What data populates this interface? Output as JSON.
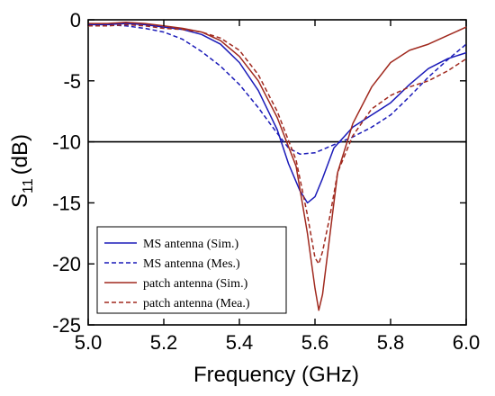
{
  "chart_data": {
    "type": "line",
    "xlabel": "Frequency (GHz)",
    "ylabel_main": "S",
    "ylabel_sub": "11",
    "ylabel_rest": "(dB)",
    "xlim": [
      5.0,
      6.0
    ],
    "ylim": [
      -25,
      0
    ],
    "xticks": [
      "5.0",
      "5.2",
      "5.4",
      "5.6",
      "5.8",
      "6.0"
    ],
    "xtick_values": [
      5.0,
      5.2,
      5.4,
      5.6,
      5.8,
      6.0
    ],
    "yticks": [
      "0",
      "-5",
      "-10",
      "-15",
      "-20",
      "-25"
    ],
    "ytick_values": [
      0,
      -5,
      -10,
      -15,
      -20,
      -25
    ],
    "grid": false,
    "legend_position": "lower-left",
    "reference_line": {
      "y": -10,
      "color": "#000000"
    },
    "series": [
      {
        "name": "MS antenna (Sim.)",
        "color": "#1a1ab8",
        "dash": "solid",
        "x": [
          5.0,
          5.05,
          5.1,
          5.15,
          5.2,
          5.25,
          5.3,
          5.35,
          5.4,
          5.45,
          5.5,
          5.53,
          5.56,
          5.58,
          5.6,
          5.62,
          5.65,
          5.7,
          5.75,
          5.8,
          5.85,
          5.9,
          5.95,
          6.0
        ],
        "y": [
          -0.4,
          -0.4,
          -0.3,
          -0.4,
          -0.6,
          -0.8,
          -1.2,
          -2.0,
          -3.5,
          -5.8,
          -9.0,
          -11.8,
          -14.0,
          -15.0,
          -14.5,
          -13.0,
          -10.5,
          -8.8,
          -7.8,
          -6.8,
          -5.3,
          -4.0,
          -3.2,
          -2.7
        ]
      },
      {
        "name": "MS antenna (Mes.)",
        "color": "#1a1ab8",
        "dash": "dashed",
        "x": [
          5.0,
          5.05,
          5.1,
          5.15,
          5.2,
          5.25,
          5.3,
          5.35,
          5.4,
          5.45,
          5.5,
          5.53,
          5.56,
          5.6,
          5.63,
          5.66,
          5.7,
          5.75,
          5.8,
          5.85,
          5.9,
          5.95,
          6.0
        ],
        "y": [
          -0.3,
          -0.4,
          -0.5,
          -0.7,
          -1.0,
          -1.6,
          -2.6,
          -3.8,
          -5.3,
          -7.2,
          -9.3,
          -10.5,
          -11.0,
          -10.9,
          -10.5,
          -10.1,
          -9.6,
          -8.8,
          -7.8,
          -6.3,
          -4.7,
          -3.3,
          -2.0
        ]
      },
      {
        "name": "patch antenna (Sim.)",
        "color": "#a0291e",
        "dash": "solid",
        "x": [
          5.0,
          5.05,
          5.1,
          5.15,
          5.2,
          5.25,
          5.3,
          5.35,
          5.4,
          5.45,
          5.5,
          5.55,
          5.58,
          5.6,
          5.61,
          5.62,
          5.64,
          5.66,
          5.7,
          5.75,
          5.8,
          5.85,
          5.9,
          5.95,
          6.0
        ],
        "y": [
          -0.3,
          -0.3,
          -0.2,
          -0.3,
          -0.5,
          -0.7,
          -1.0,
          -1.7,
          -3.0,
          -5.0,
          -8.0,
          -12.0,
          -17.5,
          -22.0,
          -23.8,
          -22.5,
          -17.5,
          -12.5,
          -8.5,
          -5.5,
          -3.5,
          -2.5,
          -2.0,
          -1.3,
          -0.6
        ]
      },
      {
        "name": "patch antenna (Mea.)",
        "color": "#a0291e",
        "dash": "dashed",
        "x": [
          5.0,
          5.05,
          5.1,
          5.15,
          5.2,
          5.25,
          5.3,
          5.35,
          5.4,
          5.45,
          5.5,
          5.55,
          5.58,
          5.6,
          5.61,
          5.62,
          5.64,
          5.66,
          5.7,
          5.75,
          5.8,
          5.85,
          5.9,
          5.95,
          6.0
        ],
        "y": [
          -0.5,
          -0.5,
          -0.4,
          -0.5,
          -0.7,
          -0.8,
          -1.0,
          -1.5,
          -2.5,
          -4.5,
          -7.5,
          -11.5,
          -16.0,
          -19.5,
          -20.0,
          -19.0,
          -16.0,
          -12.5,
          -9.5,
          -7.3,
          -6.2,
          -5.5,
          -5.0,
          -4.2,
          -3.2
        ]
      }
    ]
  }
}
